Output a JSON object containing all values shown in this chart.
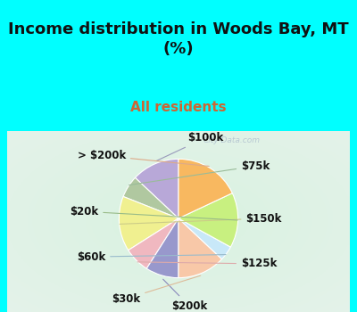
{
  "title": "Income distribution in Woods Bay, MT\n(%)",
  "subtitle": "All residents",
  "title_color": "#111111",
  "subtitle_color": "#cc6633",
  "bg_cyan": "#00ffff",
  "watermark": "City-Data.com",
  "slices": [
    {
      "label": "$100k",
      "value": 13,
      "color": "#b8a8d8"
    },
    {
      "label": "$75k",
      "value": 6,
      "color": "#b0c8a0"
    },
    {
      "label": "$150k",
      "value": 15,
      "color": "#f0f090"
    },
    {
      "label": "$125k",
      "value": 7,
      "color": "#f0b8c0"
    },
    {
      "label": "$200k",
      "value": 9,
      "color": "#9898cc"
    },
    {
      "label": "$30k",
      "value": 13,
      "color": "#f8c8a8"
    },
    {
      "label": "$60k",
      "value": 4,
      "color": "#c8e8f8"
    },
    {
      "label": "$20k",
      "value": 15,
      "color": "#c8f080"
    },
    {
      "label": "> $200k",
      "value": 18,
      "color": "#f8b860"
    }
  ],
  "label_fontsize": 8.5,
  "title_fontsize": 13,
  "subtitle_fontsize": 11
}
